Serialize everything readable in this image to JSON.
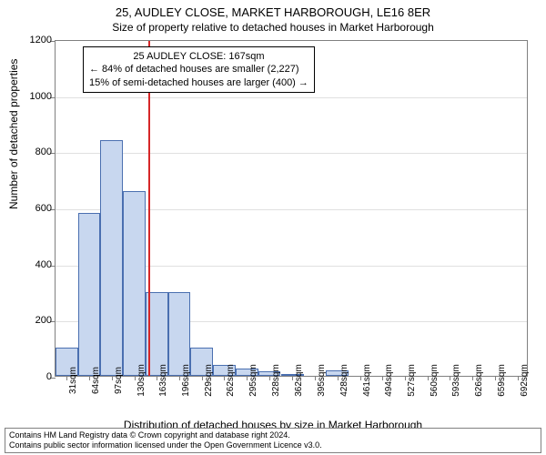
{
  "title": "25, AUDLEY CLOSE, MARKET HARBOROUGH, LE16 8ER",
  "subtitle": "Size of property relative to detached houses in Market Harborough",
  "chart": {
    "type": "histogram",
    "ylabel": "Number of detached properties",
    "xlabel": "Distribution of detached houses by size in Market Harborough",
    "ylim": [
      0,
      1200
    ],
    "ytick_step": 200,
    "yticks": [
      0,
      200,
      400,
      600,
      800,
      1000,
      1200
    ],
    "bar_fill": "#c8d7ef",
    "bar_stroke": "#4a6fb0",
    "background_color": "#ffffff",
    "grid_color": "#e0e0e0",
    "axis_color": "#808080",
    "marker_color": "#d62728",
    "marker_x": 167,
    "x_tick_labels": [
      "31sqm",
      "64sqm",
      "97sqm",
      "130sqm",
      "163sqm",
      "196sqm",
      "229sqm",
      "262sqm",
      "295sqm",
      "328sqm",
      "362sqm",
      "395sqm",
      "428sqm",
      "461sqm",
      "494sqm",
      "527sqm",
      "560sqm",
      "593sqm",
      "626sqm",
      "659sqm",
      "692sqm"
    ],
    "bins": [
      {
        "x": 31,
        "count": 100
      },
      {
        "x": 64,
        "count": 580
      },
      {
        "x": 97,
        "count": 840
      },
      {
        "x": 130,
        "count": 660
      },
      {
        "x": 163,
        "count": 300
      },
      {
        "x": 196,
        "count": 300
      },
      {
        "x": 229,
        "count": 100
      },
      {
        "x": 262,
        "count": 40
      },
      {
        "x": 295,
        "count": 25
      },
      {
        "x": 328,
        "count": 15
      },
      {
        "x": 362,
        "count": 5
      },
      {
        "x": 395,
        "count": 0
      },
      {
        "x": 428,
        "count": 20
      },
      {
        "x": 461,
        "count": 0
      },
      {
        "x": 494,
        "count": 0
      },
      {
        "x": 527,
        "count": 0
      },
      {
        "x": 560,
        "count": 0
      },
      {
        "x": 593,
        "count": 0
      },
      {
        "x": 626,
        "count": 0
      },
      {
        "x": 659,
        "count": 0
      },
      {
        "x": 692,
        "count": 0
      }
    ],
    "bin_width_sqm": 33,
    "x_domain": [
      31,
      725
    ]
  },
  "annotation": {
    "line1": "25 AUDLEY CLOSE: 167sqm",
    "line2": "← 84% of detached houses are smaller (2,227)",
    "line3": "15% of semi-detached houses are larger (400) →",
    "border_color": "#000000",
    "background": "#ffffff",
    "fontsize": 11
  },
  "footer": {
    "line1": "Contains HM Land Registry data © Crown copyright and database right 2024.",
    "line2": "Contains public sector information licensed under the Open Government Licence v3.0.",
    "border_color": "#808080",
    "fontsize": 9
  }
}
